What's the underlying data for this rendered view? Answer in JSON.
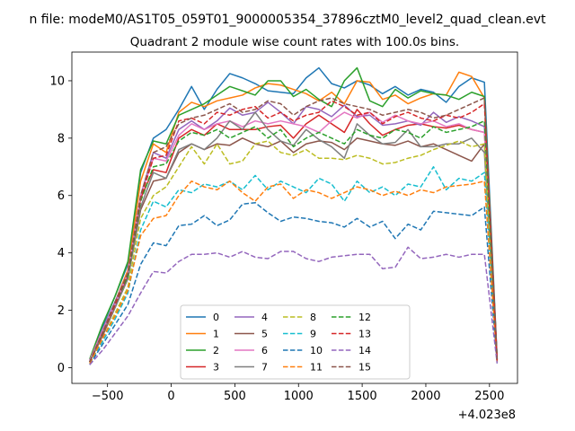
{
  "page": {
    "suptitle": "n file: modeM0/AS1T05_059T01_9000005354_37896cztM0_level2_quad_clean.evt",
    "title": "Quadrant 2 module wise count rates with 100.0s bins.",
    "x_offset_label": "+4.023e8"
  },
  "chart_data": {
    "type": "line",
    "title": "Quadrant 2 module wise count rates with 100.0s bins.",
    "xlabel": "",
    "ylabel": "",
    "x_offset": 402300000,
    "xlim": [
      -780,
      2720
    ],
    "ylim": [
      -0.55,
      11.0
    ],
    "xticks": [
      -500,
      0,
      500,
      1000,
      1500,
      2000,
      2500
    ],
    "xtick_labels": [
      "−500",
      "0",
      "500",
      "1000",
      "1500",
      "2000",
      "2500"
    ],
    "yticks": [
      0,
      2,
      4,
      6,
      8,
      10
    ],
    "ytick_labels": [
      "0",
      "2",
      "4",
      "6",
      "8",
      "10"
    ],
    "grid": false,
    "legend_position": "lower-center",
    "legend_columns": 4,
    "x": [
      -640,
      -540,
      -440,
      -340,
      -240,
      -140,
      -40,
      60,
      160,
      260,
      360,
      460,
      560,
      660,
      760,
      860,
      960,
      1060,
      1160,
      1260,
      1360,
      1460,
      1560,
      1660,
      1760,
      1860,
      1960,
      2060,
      2160,
      2260,
      2360,
      2460,
      2560
    ],
    "series": [
      {
        "name": "0",
        "color": "#1f77b4",
        "dash": "solid",
        "values": [
          0.25,
          1.4,
          2.5,
          3.6,
          6.8,
          8.0,
          8.3,
          9.0,
          9.8,
          9.0,
          9.7,
          10.25,
          10.1,
          9.9,
          9.65,
          9.6,
          9.55,
          10.1,
          10.45,
          9.9,
          9.75,
          10.0,
          9.85,
          9.55,
          9.8,
          9.5,
          9.7,
          9.6,
          9.25,
          9.8,
          10.1,
          9.95,
          0.35
        ]
      },
      {
        "name": "1",
        "color": "#ff7f0e",
        "dash": "solid",
        "values": [
          0.2,
          1.3,
          2.3,
          3.4,
          6.5,
          7.8,
          7.5,
          8.9,
          9.25,
          9.1,
          9.3,
          9.4,
          9.5,
          9.75,
          9.9,
          9.85,
          9.7,
          9.55,
          9.3,
          9.6,
          9.2,
          10.0,
          9.95,
          9.35,
          9.5,
          9.2,
          9.4,
          9.55,
          9.5,
          10.3,
          10.15,
          9.4,
          0.3
        ]
      },
      {
        "name": "2",
        "color": "#2ca02c",
        "dash": "solid",
        "values": [
          0.3,
          1.5,
          2.5,
          3.7,
          6.9,
          7.9,
          7.8,
          8.8,
          9.0,
          9.2,
          9.5,
          9.8,
          9.65,
          9.5,
          10.0,
          10.0,
          9.45,
          9.7,
          9.35,
          9.1,
          10.0,
          10.45,
          9.3,
          9.1,
          9.7,
          9.4,
          9.65,
          9.55,
          9.5,
          9.35,
          9.6,
          9.45,
          0.3
        ]
      },
      {
        "name": "3",
        "color": "#d62728",
        "dash": "solid",
        "values": [
          0.2,
          1.2,
          2.2,
          3.2,
          5.9,
          6.9,
          6.8,
          8.0,
          8.3,
          8.1,
          8.5,
          8.3,
          8.3,
          8.3,
          8.4,
          8.45,
          8.0,
          8.5,
          8.8,
          8.5,
          8.2,
          9.0,
          8.5,
          8.1,
          8.3,
          8.45,
          8.5,
          8.4,
          8.35,
          8.45,
          8.3,
          8.2,
          0.25
        ]
      },
      {
        "name": "4",
        "color": "#9467bd",
        "dash": "solid",
        "values": [
          0.25,
          1.3,
          2.3,
          3.3,
          6.0,
          7.5,
          7.3,
          8.3,
          8.6,
          8.3,
          8.6,
          9.05,
          8.8,
          8.9,
          9.25,
          8.9,
          8.5,
          9.1,
          9.0,
          8.75,
          9.15,
          8.75,
          8.8,
          8.45,
          8.5,
          8.6,
          8.45,
          8.9,
          8.55,
          8.75,
          8.6,
          8.4,
          0.3
        ]
      },
      {
        "name": "5",
        "color": "#8c564b",
        "dash": "solid",
        "values": [
          0.2,
          1.1,
          2.1,
          3.1,
          5.5,
          6.5,
          6.6,
          7.5,
          7.8,
          7.6,
          7.8,
          7.75,
          8.0,
          7.8,
          7.7,
          7.9,
          7.5,
          7.8,
          7.9,
          7.85,
          7.6,
          8.0,
          7.9,
          7.8,
          7.75,
          7.9,
          7.7,
          7.8,
          7.6,
          7.4,
          7.2,
          7.8,
          0.25
        ]
      },
      {
        "name": "6",
        "color": "#e377c2",
        "dash": "solid",
        "values": [
          0.25,
          1.3,
          2.2,
          3.3,
          6.0,
          7.3,
          7.2,
          8.1,
          8.5,
          8.3,
          8.5,
          8.6,
          8.4,
          8.6,
          8.5,
          8.6,
          8.5,
          8.4,
          8.2,
          8.6,
          8.9,
          8.7,
          8.9,
          8.55,
          8.8,
          8.6,
          8.5,
          8.6,
          8.4,
          8.5,
          8.3,
          8.2,
          0.3
        ]
      },
      {
        "name": "7",
        "color": "#7f7f7f",
        "dash": "solid",
        "values": [
          0.2,
          1.2,
          2.1,
          3.1,
          5.6,
          6.8,
          6.6,
          7.6,
          7.8,
          7.6,
          8.0,
          8.6,
          8.3,
          8.9,
          8.3,
          7.9,
          7.75,
          8.3,
          7.95,
          7.7,
          7.3,
          8.5,
          8.1,
          7.8,
          7.85,
          8.3,
          7.7,
          7.7,
          7.8,
          7.8,
          8.0,
          7.5,
          0.25
        ]
      },
      {
        "name": "8",
        "color": "#bcbd22",
        "dash": "dashed",
        "values": [
          0.15,
          1.0,
          1.9,
          2.8,
          5.2,
          6.0,
          6.3,
          7.0,
          7.7,
          7.1,
          7.8,
          7.1,
          7.2,
          7.8,
          7.9,
          7.5,
          7.4,
          7.6,
          7.3,
          7.3,
          7.25,
          7.4,
          7.3,
          7.1,
          7.15,
          7.3,
          7.4,
          7.6,
          7.75,
          7.9,
          7.7,
          7.8,
          0.2
        ]
      },
      {
        "name": "9",
        "color": "#17becf",
        "dash": "dashed",
        "values": [
          0.15,
          0.9,
          1.7,
          2.6,
          4.8,
          5.8,
          5.6,
          6.2,
          6.1,
          6.4,
          6.3,
          6.5,
          6.2,
          6.7,
          6.2,
          6.5,
          6.3,
          6.1,
          6.6,
          6.4,
          5.8,
          6.5,
          6.1,
          6.3,
          6.0,
          6.4,
          6.3,
          7.0,
          6.2,
          6.6,
          6.5,
          6.8,
          0.2
        ]
      },
      {
        "name": "10",
        "color": "#1f77b4",
        "dash": "dashed",
        "values": [
          0.1,
          0.8,
          1.5,
          2.2,
          3.6,
          4.35,
          4.25,
          4.95,
          5.0,
          5.3,
          4.95,
          5.15,
          5.7,
          5.75,
          5.4,
          5.1,
          5.25,
          5.2,
          5.1,
          5.05,
          4.9,
          5.2,
          4.9,
          5.1,
          4.5,
          5.0,
          4.8,
          5.45,
          5.4,
          5.35,
          5.3,
          5.6,
          0.15
        ]
      },
      {
        "name": "11",
        "color": "#ff7f0e",
        "dash": "dashed",
        "values": [
          0.15,
          1.0,
          1.8,
          2.7,
          4.6,
          5.2,
          5.3,
          6.0,
          6.5,
          6.3,
          6.2,
          6.5,
          6.1,
          5.8,
          6.3,
          6.4,
          5.9,
          6.2,
          6.1,
          5.9,
          6.1,
          6.3,
          6.2,
          6.0,
          6.15,
          6.0,
          6.2,
          6.1,
          6.3,
          6.35,
          6.4,
          6.5,
          0.2
        ]
      },
      {
        "name": "12",
        "color": "#2ca02c",
        "dash": "dashed",
        "values": [
          0.2,
          1.2,
          2.2,
          3.2,
          5.8,
          7.0,
          7.1,
          7.9,
          8.2,
          8.1,
          8.3,
          8.0,
          8.2,
          8.4,
          8.0,
          8.3,
          7.7,
          8.0,
          8.2,
          8.0,
          7.8,
          8.3,
          8.1,
          8.0,
          8.3,
          8.2,
          8.0,
          8.4,
          8.2,
          8.3,
          8.4,
          8.6,
          0.25
        ]
      },
      {
        "name": "13",
        "color": "#d62728",
        "dash": "dashed",
        "values": [
          0.2,
          1.2,
          2.2,
          3.3,
          5.9,
          7.3,
          7.4,
          8.6,
          8.7,
          8.5,
          8.9,
          8.8,
          9.0,
          9.1,
          8.7,
          8.9,
          8.6,
          8.8,
          8.9,
          9.3,
          9.1,
          8.8,
          8.9,
          8.5,
          8.75,
          8.9,
          8.7,
          8.6,
          8.8,
          8.7,
          8.9,
          9.2,
          0.25
        ]
      },
      {
        "name": "14",
        "color": "#9467bd",
        "dash": "dashed",
        "values": [
          0.1,
          0.6,
          1.2,
          1.8,
          2.6,
          3.35,
          3.3,
          3.7,
          3.95,
          3.95,
          4.0,
          3.85,
          4.05,
          3.85,
          3.8,
          4.05,
          4.05,
          3.8,
          3.7,
          3.85,
          3.9,
          3.95,
          3.95,
          3.45,
          3.5,
          4.2,
          3.8,
          3.85,
          3.95,
          3.85,
          3.95,
          3.95,
          0.15
        ]
      },
      {
        "name": "15",
        "color": "#8c564b",
        "dash": "dashed",
        "values": [
          0.2,
          1.2,
          2.3,
          3.3,
          6.0,
          7.5,
          7.7,
          8.5,
          8.7,
          8.8,
          9.0,
          9.2,
          8.9,
          9.0,
          9.3,
          9.2,
          8.8,
          9.1,
          9.3,
          9.4,
          9.2,
          9.1,
          9.0,
          8.8,
          8.9,
          9.0,
          8.9,
          8.7,
          8.8,
          9.0,
          9.2,
          9.4,
          0.3
        ]
      }
    ]
  }
}
